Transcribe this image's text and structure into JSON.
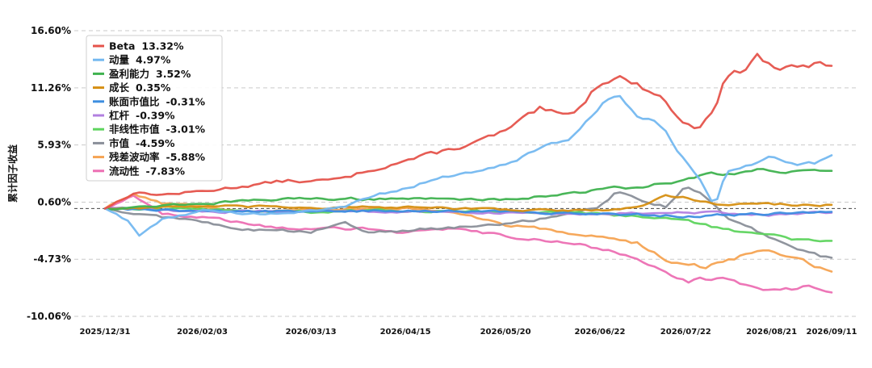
{
  "chart_data": {
    "type": "line",
    "ylabel": "累计因子收益",
    "xlabel": "",
    "ylim": [
      -10.06,
      16.6
    ],
    "y_ticks": [
      "16.60%",
      "11.26%",
      "5.93%",
      "0.60%",
      "-4.73%",
      "-10.06%"
    ],
    "y_tick_values": [
      16.6,
      11.26,
      5.93,
      0.6,
      -4.73,
      -10.06
    ],
    "x_ticks": [
      "2025/12/31",
      "2026/02/03",
      "2026/03/13",
      "2026/04/15",
      "2026/05/20",
      "2026/06/22",
      "2026/07/22",
      "2026/08/21",
      "2026/09/11"
    ],
    "x_tick_values": [
      "2025/12/31",
      "2026/02/03",
      "2026/03/13",
      "2026/04/15",
      "2026/05/20",
      "2026/06/22",
      "2026/07/22",
      "2026/08/21",
      "2026/09/11"
    ],
    "x_range": [
      "2025/12/31",
      "2026/09/11"
    ],
    "grid": "horizontal dashed",
    "zero_line": "dashed",
    "legend_position": "top-left",
    "series": [
      {
        "name": "Beta",
        "final": "13.32%",
        "color": "#e5534b",
        "points": [
          [
            "2025/12/31",
            0.0
          ],
          [
            "2026/01/10",
            1.5
          ],
          [
            "2026/01/20",
            1.3
          ],
          [
            "2026/02/03",
            1.6
          ],
          [
            "2026/02/20",
            2.2
          ],
          [
            "2026/03/05",
            2.6
          ],
          [
            "2026/03/13",
            2.5
          ],
          [
            "2026/03/25",
            2.8
          ],
          [
            "2026/04/01",
            3.5
          ],
          [
            "2026/04/15",
            4.5
          ],
          [
            "2026/04/25",
            5.1
          ],
          [
            "2026/05/10",
            6.2
          ],
          [
            "2026/05/20",
            7.2
          ],
          [
            "2026/06/01",
            9.2
          ],
          [
            "2026/06/10",
            8.5
          ],
          [
            "2026/06/15",
            9.5
          ],
          [
            "2026/06/22",
            11.8
          ],
          [
            "2026/06/28",
            12.5
          ],
          [
            "2026/07/05",
            11.5
          ],
          [
            "2026/07/12",
            10.8
          ],
          [
            "2026/07/22",
            7.8
          ],
          [
            "2026/07/26",
            7.5
          ],
          [
            "2026/08/01",
            9.5
          ],
          [
            "2026/08/05",
            12.3
          ],
          [
            "2026/08/12",
            13.0
          ],
          [
            "2026/08/16",
            14.3
          ],
          [
            "2026/08/21",
            13.2
          ],
          [
            "2026/08/30",
            13.0
          ],
          [
            "2026/09/05",
            13.4
          ],
          [
            "2026/09/11",
            13.32
          ]
        ]
      },
      {
        "name": "动量",
        "final": "4.97%",
        "color": "#74b8f0",
        "points": [
          [
            "2025/12/31",
            0.0
          ],
          [
            "2026/01/08",
            -1.2
          ],
          [
            "2026/01/12",
            -2.5
          ],
          [
            "2026/01/20",
            -1.0
          ],
          [
            "2026/02/03",
            -0.2
          ],
          [
            "2026/02/20",
            -0.5
          ],
          [
            "2026/03/13",
            -0.3
          ],
          [
            "2026/03/25",
            0.2
          ],
          [
            "2026/04/01",
            1.1
          ],
          [
            "2026/04/15",
            1.8
          ],
          [
            "2026/04/25",
            2.8
          ],
          [
            "2026/05/10",
            3.5
          ],
          [
            "2026/05/20",
            4.0
          ],
          [
            "2026/06/01",
            5.8
          ],
          [
            "2026/06/10",
            6.2
          ],
          [
            "2026/06/22",
            9.5
          ],
          [
            "2026/06/28",
            10.8
          ],
          [
            "2026/07/05",
            8.8
          ],
          [
            "2026/07/12",
            8.5
          ],
          [
            "2026/07/18",
            6.0
          ],
          [
            "2026/07/22",
            4.5
          ],
          [
            "2026/07/26",
            3.2
          ],
          [
            "2026/08/01",
            0.2
          ],
          [
            "2026/08/05",
            3.2
          ],
          [
            "2026/08/12",
            4.0
          ],
          [
            "2026/08/21",
            5.0
          ],
          [
            "2026/08/30",
            4.3
          ],
          [
            "2026/09/05",
            4.2
          ],
          [
            "2026/09/11",
            4.97
          ]
        ]
      },
      {
        "name": "盈利能力",
        "final": "3.52%",
        "color": "#3fb24f",
        "points": [
          [
            "2025/12/31",
            0.0
          ],
          [
            "2026/01/15",
            0.2
          ],
          [
            "2026/02/03",
            0.5
          ],
          [
            "2026/02/20",
            0.7
          ],
          [
            "2026/03/13",
            1.0
          ],
          [
            "2026/04/01",
            0.9
          ],
          [
            "2026/04/15",
            1.0
          ],
          [
            "2026/05/01",
            0.8
          ],
          [
            "2026/05/20",
            0.9
          ],
          [
            "2026/06/05",
            1.2
          ],
          [
            "2026/06/22",
            1.8
          ],
          [
            "2026/07/05",
            2.0
          ],
          [
            "2026/07/15",
            2.4
          ],
          [
            "2026/07/22",
            2.6
          ],
          [
            "2026/07/28",
            3.2
          ],
          [
            "2026/08/05",
            3.3
          ],
          [
            "2026/08/15",
            3.6
          ],
          [
            "2026/08/21",
            3.6
          ],
          [
            "2026/09/01",
            3.5
          ],
          [
            "2026/09/11",
            3.52
          ]
        ]
      },
      {
        "name": "成长",
        "final": "0.35%",
        "color": "#d68f12",
        "points": [
          [
            "2025/12/31",
            0.0
          ],
          [
            "2026/01/15",
            0.1
          ],
          [
            "2026/02/03",
            0.2
          ],
          [
            "2026/03/13",
            0.1
          ],
          [
            "2026/04/15",
            0.1
          ],
          [
            "2026/05/20",
            -0.1
          ],
          [
            "2026/06/22",
            -0.2
          ],
          [
            "2026/07/05",
            0.1
          ],
          [
            "2026/07/15",
            1.2
          ],
          [
            "2026/07/22",
            1.0
          ],
          [
            "2026/08/01",
            0.5
          ],
          [
            "2026/08/21",
            0.4
          ],
          [
            "2026/09/11",
            0.35
          ]
        ]
      },
      {
        "name": "账面市值比",
        "final": "-0.31%",
        "color": "#3d8ee0",
        "points": [
          [
            "2025/12/31",
            0.0
          ],
          [
            "2026/02/03",
            -0.2
          ],
          [
            "2026/03/13",
            -0.3
          ],
          [
            "2026/04/15",
            -0.2
          ],
          [
            "2026/05/20",
            -0.3
          ],
          [
            "2026/06/22",
            -0.5
          ],
          [
            "2026/07/22",
            -0.7
          ],
          [
            "2026/08/21",
            -0.5
          ],
          [
            "2026/09/11",
            -0.31
          ]
        ]
      },
      {
        "name": "杠杆",
        "final": "-0.39%",
        "color": "#b27fe0",
        "points": [
          [
            "2025/12/31",
            0.0
          ],
          [
            "2026/02/03",
            -0.3
          ],
          [
            "2026/03/13",
            -0.2
          ],
          [
            "2026/04/15",
            -0.3
          ],
          [
            "2026/05/20",
            -0.4
          ],
          [
            "2026/06/22",
            -0.5
          ],
          [
            "2026/07/22",
            -0.3
          ],
          [
            "2026/08/21",
            -0.6
          ],
          [
            "2026/09/11",
            -0.39
          ]
        ]
      },
      {
        "name": "非线性市值",
        "final": "-3.01%",
        "color": "#5ed45e",
        "points": [
          [
            "2025/12/31",
            0.0
          ],
          [
            "2026/02/03",
            -0.1
          ],
          [
            "2026/03/13",
            -0.3
          ],
          [
            "2026/04/15",
            -0.2
          ],
          [
            "2026/05/20",
            -0.3
          ],
          [
            "2026/06/22",
            -0.5
          ],
          [
            "2026/07/22",
            -1.0
          ],
          [
            "2026/08/01",
            -1.8
          ],
          [
            "2026/08/21",
            -2.5
          ],
          [
            "2026/09/01",
            -3.0
          ],
          [
            "2026/09/11",
            -3.01
          ]
        ]
      },
      {
        "name": "市值",
        "final": "-4.59%",
        "color": "#8a8f99",
        "points": [
          [
            "2025/12/31",
            0.0
          ],
          [
            "2026/01/20",
            -0.8
          ],
          [
            "2026/02/03",
            -1.2
          ],
          [
            "2026/02/20",
            -2.0
          ],
          [
            "2026/03/13",
            -2.2
          ],
          [
            "2026/03/25",
            -1.2
          ],
          [
            "2026/04/01",
            -2.3
          ],
          [
            "2026/04/15",
            -2.0
          ],
          [
            "2026/05/01",
            -1.8
          ],
          [
            "2026/05/20",
            -1.5
          ],
          [
            "2026/06/05",
            -0.8
          ],
          [
            "2026/06/22",
            0.2
          ],
          [
            "2026/06/28",
            1.6
          ],
          [
            "2026/07/05",
            0.8
          ],
          [
            "2026/07/15",
            0.2
          ],
          [
            "2026/07/22",
            2.2
          ],
          [
            "2026/07/28",
            1.5
          ],
          [
            "2026/08/05",
            -0.8
          ],
          [
            "2026/08/15",
            -2.0
          ],
          [
            "2026/08/21",
            -2.8
          ],
          [
            "2026/09/01",
            -4.0
          ],
          [
            "2026/09/11",
            -4.59
          ]
        ]
      },
      {
        "name": "残差波动率",
        "final": "-5.88%",
        "color": "#f5a352",
        "points": [
          [
            "2025/12/31",
            0.0
          ],
          [
            "2026/01/10",
            1.5
          ],
          [
            "2026/01/20",
            0.5
          ],
          [
            "2026/02/03",
            0.2
          ],
          [
            "2026/02/20",
            -0.3
          ],
          [
            "2026/03/13",
            -0.1
          ],
          [
            "2026/04/15",
            0.0
          ],
          [
            "2026/05/01",
            -0.3
          ],
          [
            "2026/05/20",
            -1.5
          ],
          [
            "2026/06/05",
            -2.0
          ],
          [
            "2026/06/22",
            -2.6
          ],
          [
            "2026/07/05",
            -3.2
          ],
          [
            "2026/07/15",
            -4.8
          ],
          [
            "2026/07/22",
            -5.3
          ],
          [
            "2026/07/28",
            -5.5
          ],
          [
            "2026/08/05",
            -5.0
          ],
          [
            "2026/08/15",
            -4.0
          ],
          [
            "2026/08/21",
            -4.2
          ],
          [
            "2026/09/01",
            -5.0
          ],
          [
            "2026/09/11",
            -5.88
          ]
        ]
      },
      {
        "name": "流动性",
        "final": "-7.83%",
        "color": "#ec6fb3",
        "points": [
          [
            "2025/12/31",
            0.0
          ],
          [
            "2026/01/10",
            1.2
          ],
          [
            "2026/01/20",
            -0.5
          ],
          [
            "2026/02/03",
            -0.8
          ],
          [
            "2026/02/20",
            -1.5
          ],
          [
            "2026/03/13",
            -2.0
          ],
          [
            "2026/04/01",
            -1.8
          ],
          [
            "2026/04/15",
            -2.2
          ],
          [
            "2026/05/01",
            -2.0
          ],
          [
            "2026/05/20",
            -2.5
          ],
          [
            "2026/06/05",
            -3.0
          ],
          [
            "2026/06/22",
            -3.8
          ],
          [
            "2026/07/05",
            -4.5
          ],
          [
            "2026/07/15",
            -6.0
          ],
          [
            "2026/07/22",
            -6.8
          ],
          [
            "2026/08/05",
            -6.5
          ],
          [
            "2026/08/15",
            -7.3
          ],
          [
            "2026/08/21",
            -7.6
          ],
          [
            "2026/09/01",
            -7.4
          ],
          [
            "2026/09/11",
            -7.83
          ]
        ]
      }
    ]
  }
}
